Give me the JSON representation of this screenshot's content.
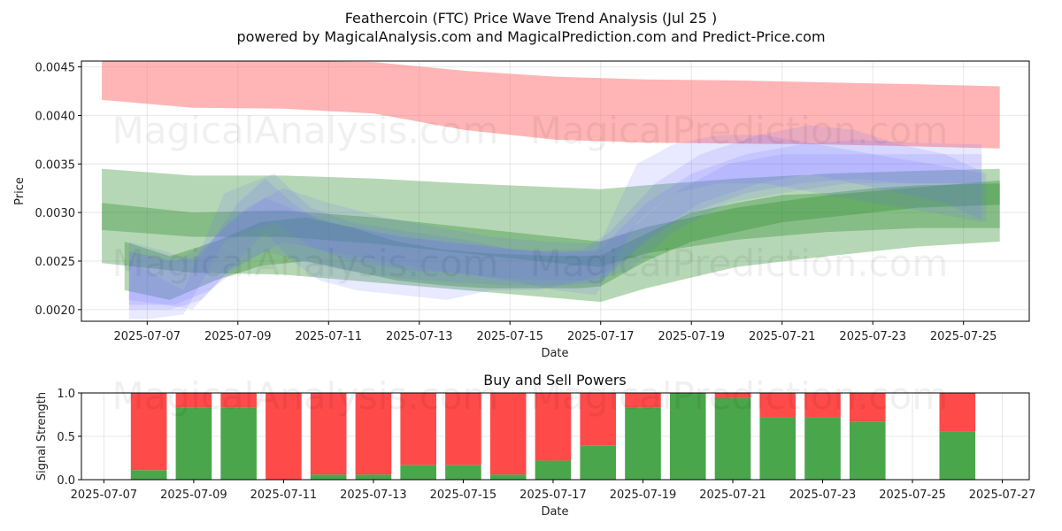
{
  "colors": {
    "red_band": "#ff6b6b",
    "green_band": "#2e8b2e",
    "blue_band": "#6e6eff",
    "buy": "#4aa64a",
    "sell": "#ff4a4a"
  },
  "watermark": {
    "left": "MagicalAnalysis.com",
    "right": "MagicalPrediction.com"
  },
  "chart_data": [
    {
      "type": "area",
      "title": "Feathercoin (FTC) Price Wave Trend Analysis (Jul 25 )",
      "subtitle": "powered by MagicalAnalysis.com and MagicalPrediction.com and Predict-Price.com",
      "xlabel": "Date",
      "ylabel": "Price",
      "xlim": [
        -0.45,
        20.45
      ],
      "ylim": [
        0.00188,
        0.00456
      ],
      "x_tick_values": [
        1,
        3,
        5,
        7,
        9,
        11,
        13,
        15,
        17,
        19
      ],
      "x_tick_labels": [
        "2025-07-07",
        "2025-07-09",
        "2025-07-11",
        "2025-07-13",
        "2025-07-15",
        "2025-07-17",
        "2025-07-19",
        "2025-07-21",
        "2025-07-23",
        "2025-07-25"
      ],
      "y_tick_values": [
        0.002,
        0.0025,
        0.003,
        0.0035,
        0.004,
        0.0045
      ],
      "y_tick_labels": [
        "0.0020",
        "0.0025",
        "0.0030",
        "0.0035",
        "0.0040",
        "0.0045"
      ],
      "grid": true,
      "series": [
        {
          "name": "red-band",
          "color": "red",
          "opacity": 0.5,
          "x": [
            0,
            2,
            4,
            6,
            8,
            10,
            12,
            14,
            16,
            18,
            19.8
          ],
          "upper": [
            0.00462,
            0.00456,
            0.00456,
            0.00455,
            0.00446,
            0.0044,
            0.00437,
            0.00436,
            0.00434,
            0.00432,
            0.0043
          ],
          "lower": [
            0.00416,
            0.00408,
            0.00407,
            0.00402,
            0.00385,
            0.00375,
            0.00372,
            0.00371,
            0.0037,
            0.00368,
            0.00366
          ]
        },
        {
          "name": "green-wide",
          "color": "green",
          "opacity": 0.35,
          "x": [
            0,
            2,
            4,
            6,
            8,
            10,
            11,
            12,
            14,
            16,
            18,
            19.8
          ],
          "upper": [
            0.00345,
            0.00338,
            0.00338,
            0.00335,
            0.0033,
            0.00326,
            0.00324,
            0.00328,
            0.00335,
            0.0034,
            0.00343,
            0.00345
          ],
          "lower": [
            0.00248,
            0.00238,
            0.00236,
            0.00228,
            0.0022,
            0.00212,
            0.00208,
            0.00222,
            0.00244,
            0.00255,
            0.00265,
            0.0027
          ]
        },
        {
          "name": "green-mid",
          "color": "green",
          "opacity": 0.35,
          "x": [
            0,
            2,
            4,
            6,
            8,
            10,
            11,
            12,
            14,
            16,
            18,
            19.8
          ],
          "upper": [
            0.0031,
            0.003,
            0.00302,
            0.00295,
            0.00285,
            0.00275,
            0.0027,
            0.00285,
            0.00305,
            0.00318,
            0.00326,
            0.00333
          ],
          "lower": [
            0.00282,
            0.00275,
            0.00275,
            0.00268,
            0.00258,
            0.00248,
            0.00244,
            0.00258,
            0.00272,
            0.0028,
            0.00284,
            0.00284
          ]
        },
        {
          "name": "green-lower",
          "color": "green",
          "opacity": 0.35,
          "x": [
            0.5,
            1.5,
            2.5,
            3.5,
            4.5,
            5.5,
            6.5,
            7.5,
            8.5,
            9.5,
            10.5,
            11,
            12,
            13,
            14,
            15,
            16,
            17,
            18,
            19.8
          ],
          "upper": [
            0.0027,
            0.00255,
            0.0027,
            0.0029,
            0.00295,
            0.00285,
            0.0027,
            0.00262,
            0.00258,
            0.00256,
            0.00255,
            0.00256,
            0.00278,
            0.003,
            0.0031,
            0.00318,
            0.0032,
            0.00325,
            0.00328,
            0.0033
          ],
          "lower": [
            0.0022,
            0.0021,
            0.0023,
            0.00245,
            0.0025,
            0.0024,
            0.0023,
            0.00225,
            0.00222,
            0.00222,
            0.00222,
            0.00224,
            0.0025,
            0.0027,
            0.0028,
            0.0029,
            0.00295,
            0.003,
            0.00305,
            0.00308
          ]
        },
        {
          "name": "blue-1",
          "color": "blue",
          "opacity": 0.15,
          "x": [
            0.6,
            1.0,
            1.8,
            2.7,
            3.8,
            4.6,
            5.5,
            6.8,
            8.0,
            9.0,
            10.0,
            10.9,
            11.8,
            12.6,
            13.6,
            14.6,
            15.8,
            17.0,
            18.3,
            19.4
          ],
          "upper": [
            0.0025,
            0.0024,
            0.0022,
            0.0032,
            0.0034,
            0.00305,
            0.0029,
            0.0028,
            0.00272,
            0.00262,
            0.0026,
            0.0026,
            0.0035,
            0.0037,
            0.0038,
            0.0038,
            0.0037,
            0.0036,
            0.0035,
            0.0034
          ],
          "lower": [
            0.0019,
            0.0019,
            0.00195,
            0.0027,
            0.0029,
            0.00265,
            0.0025,
            0.0024,
            0.00237,
            0.0023,
            0.0022,
            0.00215,
            0.0029,
            0.0032,
            0.0033,
            0.0033,
            0.0032,
            0.0031,
            0.003,
            0.0029
          ]
        },
        {
          "name": "blue-2",
          "color": "blue",
          "opacity": 0.15,
          "x": [
            0.6,
            1.5,
            2.2,
            3.0,
            3.6,
            4.2,
            4.8,
            5.6,
            6.6,
            7.6,
            8.6,
            9.6,
            10.6,
            11.2,
            12.2,
            13.2,
            14.5,
            15.6,
            16.6,
            17.6,
            18.6,
            19.5
          ],
          "upper": [
            0.0026,
            0.0025,
            0.00255,
            0.0031,
            0.00335,
            0.0031,
            0.0029,
            0.00285,
            0.00275,
            0.0027,
            0.00265,
            0.0026,
            0.00262,
            0.0028,
            0.0033,
            0.0036,
            0.0038,
            0.0039,
            0.00385,
            0.0037,
            0.0036,
            0.0034
          ],
          "lower": [
            0.002,
            0.002,
            0.0021,
            0.0025,
            0.0028,
            0.0025,
            0.0023,
            0.0022,
            0.00215,
            0.0021,
            0.0022,
            0.0022,
            0.0023,
            0.0024,
            0.0028,
            0.0031,
            0.0033,
            0.0034,
            0.0033,
            0.0032,
            0.0031,
            0.0029
          ]
        },
        {
          "name": "blue-3",
          "color": "blue",
          "opacity": 0.15,
          "x": [
            0.6,
            1.4,
            2.0,
            2.8,
            3.6,
            4.4,
            5.4,
            6.6,
            7.8,
            9.0,
            10.2,
            11.0,
            12.0,
            13.0,
            14.2,
            15.4,
            16.6,
            17.8,
            19.4
          ],
          "upper": [
            0.0027,
            0.0026,
            0.0025,
            0.0029,
            0.00315,
            0.003,
            0.00285,
            0.00275,
            0.00268,
            0.00262,
            0.00258,
            0.00262,
            0.0031,
            0.0034,
            0.0036,
            0.0037,
            0.00375,
            0.00372,
            0.0037
          ],
          "lower": [
            0.0021,
            0.00205,
            0.002,
            0.0024,
            0.0026,
            0.0025,
            0.0024,
            0.00232,
            0.00228,
            0.00225,
            0.00225,
            0.00228,
            0.0027,
            0.003,
            0.0032,
            0.0033,
            0.00335,
            0.0033,
            0.0033
          ]
        },
        {
          "name": "blue-4",
          "color": "blue",
          "opacity": 0.15,
          "x": [
            0.6,
            1.6,
            2.4,
            3.2,
            4.0,
            5.0,
            6.2,
            7.4,
            8.6,
            9.8,
            10.8,
            11.6,
            12.6,
            13.8,
            15.0,
            16.4,
            17.6,
            19.4
          ],
          "upper": [
            0.0026,
            0.0025,
            0.0027,
            0.00305,
            0.00325,
            0.0031,
            0.00295,
            0.00285,
            0.00275,
            0.0027,
            0.00268,
            0.0028,
            0.0032,
            0.0035,
            0.0036,
            0.0036,
            0.0036,
            0.0036
          ],
          "lower": [
            0.00205,
            0.00205,
            0.0022,
            0.0025,
            0.0027,
            0.0026,
            0.0025,
            0.0024,
            0.00233,
            0.0023,
            0.0023,
            0.0024,
            0.0028,
            0.0031,
            0.0032,
            0.0033,
            0.0033,
            0.0033
          ]
        }
      ]
    },
    {
      "type": "bar",
      "title": "Buy and Sell Powers",
      "xlabel": "Date",
      "ylabel": "Signal Strength",
      "xlim": [
        -0.5,
        20.6
      ],
      "ylim": [
        0,
        1
      ],
      "x_tick_values": [
        0,
        2,
        4,
        6,
        8,
        10,
        12,
        14,
        16,
        18,
        20
      ],
      "x_tick_labels": [
        "2025-07-07",
        "2025-07-09",
        "2025-07-11",
        "2025-07-13",
        "2025-07-15",
        "2025-07-17",
        "2025-07-19",
        "2025-07-21",
        "2025-07-23",
        "2025-07-25",
        "2025-07-27"
      ],
      "y_tick_values": [
        0,
        0.5,
        1
      ],
      "y_tick_labels": [
        "0.0",
        "0.5",
        "1.0"
      ],
      "grid": true,
      "x": [
        1,
        2,
        3,
        4,
        5,
        6,
        7,
        8,
        9,
        10,
        11,
        12,
        13,
        14,
        15,
        16,
        17,
        19
      ],
      "series": [
        {
          "name": "Buy",
          "color": "buy",
          "values": [
            0.11,
            0.83,
            0.83,
            0.0,
            0.06,
            0.06,
            0.17,
            0.17,
            0.06,
            0.22,
            0.39,
            0.83,
            1.0,
            0.94,
            0.72,
            0.72,
            0.67,
            0.56
          ]
        },
        {
          "name": "Sell",
          "color": "sell",
          "values": [
            0.89,
            0.17,
            0.17,
            1.0,
            0.94,
            0.94,
            0.83,
            0.83,
            0.94,
            0.78,
            0.61,
            0.17,
            0.0,
            0.06,
            0.28,
            0.28,
            0.33,
            0.44
          ]
        }
      ]
    }
  ]
}
